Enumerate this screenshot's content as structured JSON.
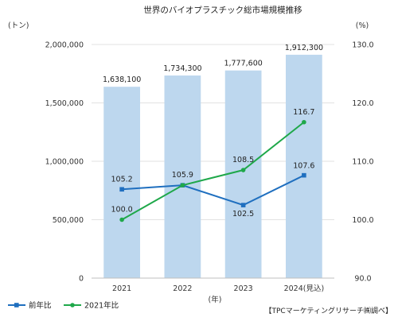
{
  "chart_data": {
    "type": "bar",
    "title": "世界のバイオプラスチック総市場規模推移",
    "left_unit": "(トン)",
    "right_unit": "(%)",
    "x_unit": "(年)",
    "source": "【TPCマーケティングリサーチ㈱調べ】",
    "categories": [
      "2021",
      "2022",
      "2023",
      "2024(見込)"
    ],
    "bars": {
      "values": [
        1638100,
        1734300,
        1777600,
        1912300
      ],
      "labels": [
        "1,638,100",
        "1,734,300",
        "1,777,600",
        "1,912,300"
      ],
      "color": "#bdd7ee"
    },
    "left_axis": {
      "min": 0,
      "max": 2000000,
      "ticks": [
        0,
        500000,
        1000000,
        1500000,
        2000000
      ],
      "tick_labels": [
        "0",
        "500,000",
        "1,000,000",
        "1,500,000",
        "2,000,000"
      ]
    },
    "right_axis": {
      "min": 90,
      "max": 130,
      "ticks": [
        90,
        100,
        110,
        120,
        130
      ],
      "tick_labels": [
        "90.0",
        "100.0",
        "110.0",
        "120.0",
        "130.0"
      ]
    },
    "series": [
      {
        "name": "前年比",
        "values": [
          105.2,
          105.9,
          102.5,
          107.6
        ],
        "labels": [
          "105.2",
          "105.9",
          "102.5",
          "107.6"
        ],
        "color": "#1f6fbf",
        "marker": "square"
      },
      {
        "name": "2021年比",
        "values": [
          100.0,
          105.9,
          108.5,
          116.7
        ],
        "labels": [
          "100.0",
          "",
          "108.5",
          "116.7"
        ],
        "color": "#1fa84a",
        "marker": "circle"
      }
    ],
    "grid": true,
    "legend_position": "bottom-left"
  }
}
